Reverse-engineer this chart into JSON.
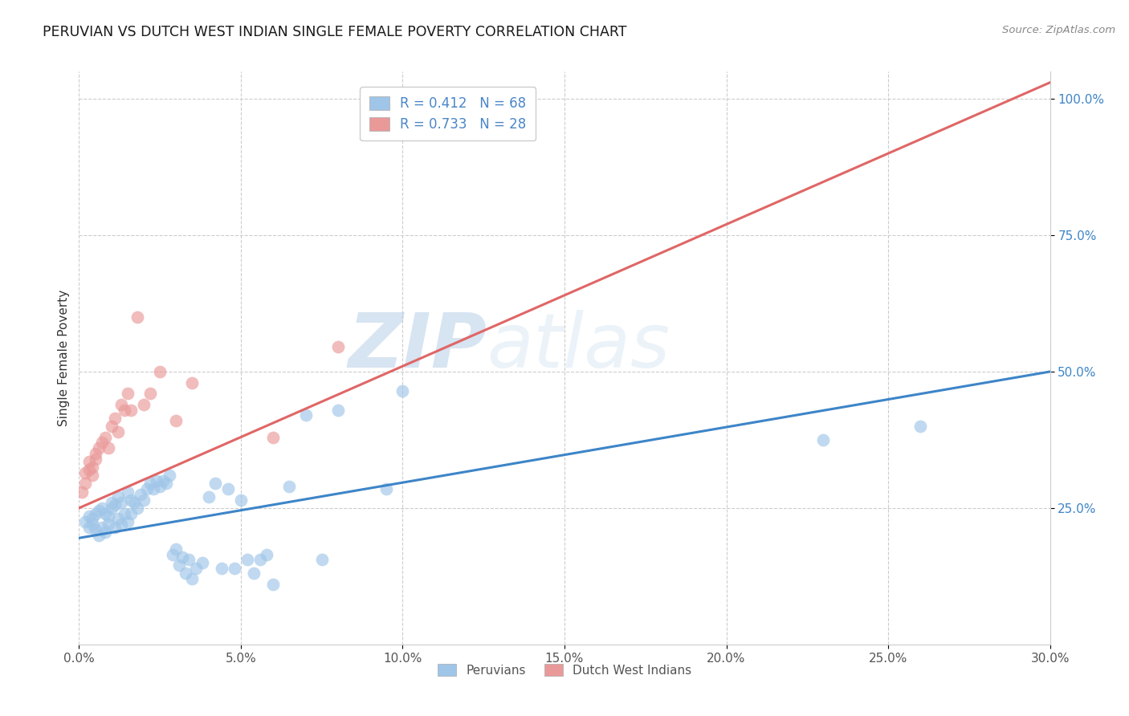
{
  "title": "PERUVIAN VS DUTCH WEST INDIAN SINGLE FEMALE POVERTY CORRELATION CHART",
  "source": "Source: ZipAtlas.com",
  "ylabel": "Single Female Poverty",
  "xlim": [
    0.0,
    0.3
  ],
  "ylim": [
    0.0,
    1.05
  ],
  "blue_R": 0.412,
  "blue_N": 68,
  "pink_R": 0.733,
  "pink_N": 28,
  "blue_color": "#9fc5e8",
  "pink_color": "#ea9999",
  "blue_line_color": "#3d85c8",
  "pink_line_color": "#e06666",
  "watermark_text": "ZIPatlas",
  "legend_label_blue": "Peruvians",
  "legend_label_pink": "Dutch West Indians",
  "blue_line_x0": 0.0,
  "blue_line_y0": 0.195,
  "blue_line_x1": 0.3,
  "blue_line_y1": 0.5,
  "pink_line_x0": 0.0,
  "pink_line_y0": 0.25,
  "pink_line_x1": 0.3,
  "pink_line_y1": 1.03,
  "blue_scatter_x": [
    0.002,
    0.003,
    0.003,
    0.004,
    0.004,
    0.005,
    0.005,
    0.006,
    0.006,
    0.007,
    0.007,
    0.008,
    0.008,
    0.009,
    0.009,
    0.01,
    0.01,
    0.011,
    0.011,
    0.012,
    0.012,
    0.013,
    0.013,
    0.014,
    0.015,
    0.015,
    0.016,
    0.016,
    0.017,
    0.018,
    0.019,
    0.02,
    0.021,
    0.022,
    0.023,
    0.024,
    0.025,
    0.026,
    0.027,
    0.028,
    0.029,
    0.03,
    0.031,
    0.032,
    0.033,
    0.034,
    0.035,
    0.036,
    0.038,
    0.04,
    0.042,
    0.044,
    0.046,
    0.048,
    0.05,
    0.052,
    0.054,
    0.056,
    0.058,
    0.06,
    0.065,
    0.07,
    0.075,
    0.08,
    0.095,
    0.1,
    0.23,
    0.26
  ],
  "blue_scatter_y": [
    0.225,
    0.215,
    0.235,
    0.22,
    0.23,
    0.21,
    0.24,
    0.2,
    0.245,
    0.215,
    0.25,
    0.205,
    0.24,
    0.22,
    0.235,
    0.25,
    0.26,
    0.215,
    0.255,
    0.23,
    0.27,
    0.22,
    0.26,
    0.24,
    0.28,
    0.225,
    0.265,
    0.24,
    0.26,
    0.25,
    0.275,
    0.265,
    0.285,
    0.295,
    0.285,
    0.3,
    0.29,
    0.3,
    0.295,
    0.31,
    0.165,
    0.175,
    0.145,
    0.16,
    0.13,
    0.155,
    0.12,
    0.14,
    0.15,
    0.27,
    0.295,
    0.14,
    0.285,
    0.14,
    0.265,
    0.155,
    0.13,
    0.155,
    0.165,
    0.11,
    0.29,
    0.42,
    0.155,
    0.43,
    0.285,
    0.465,
    0.375,
    0.4
  ],
  "pink_scatter_x": [
    0.001,
    0.002,
    0.002,
    0.003,
    0.003,
    0.004,
    0.004,
    0.005,
    0.005,
    0.006,
    0.007,
    0.008,
    0.009,
    0.01,
    0.011,
    0.012,
    0.013,
    0.014,
    0.015,
    0.016,
    0.018,
    0.02,
    0.022,
    0.025,
    0.03,
    0.035,
    0.06,
    0.08
  ],
  "pink_scatter_y": [
    0.28,
    0.315,
    0.295,
    0.32,
    0.335,
    0.325,
    0.31,
    0.34,
    0.35,
    0.36,
    0.37,
    0.38,
    0.36,
    0.4,
    0.415,
    0.39,
    0.44,
    0.43,
    0.46,
    0.43,
    0.6,
    0.44,
    0.46,
    0.5,
    0.41,
    0.48,
    0.38,
    0.545
  ]
}
